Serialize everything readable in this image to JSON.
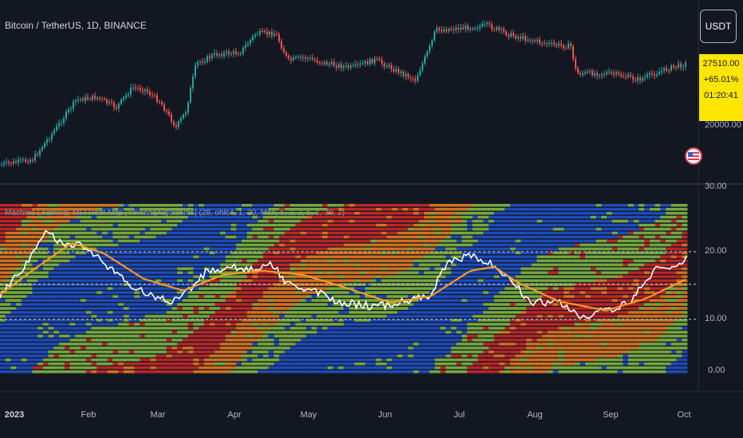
{
  "symbol": {
    "title": "Bitcoin / TetherUS, 1D, BINANCE",
    "currency": "USDT"
  },
  "price_badge": {
    "price": "27510.00",
    "change": "+65.01%",
    "countdown": "01:20:41"
  },
  "price_axis": {
    "labels": [
      "20000.00",
      "30.00"
    ]
  },
  "indicator": {
    "title": "Machine Learning: MFI Heat Map [YinYangAlgorithms] (28, ohlc4, 1, 20, Max, 5, 2, 2, 5, 1, 30, 2)",
    "axis_labels": [
      "20.00",
      "10.00",
      "0.00"
    ]
  },
  "time_axis": {
    "labels": [
      "2023",
      "Feb",
      "Mar",
      "Apr",
      "May",
      "Jun",
      "Jul",
      "Aug",
      "Sep",
      "Oct"
    ]
  },
  "icons": {
    "flag": "us-flag-icon"
  },
  "colors": {
    "background": "#131722",
    "up_candle": "#26a69a",
    "down_candle": "#ef5350",
    "mfi_line": "#ffffff",
    "mfi_ma_line": "#f59a23",
    "heat_red": "#c62828",
    "heat_orange": "#e0781f",
    "heat_green": "#7cb342",
    "heat_blue": "#1e4fc4",
    "badge": "#ffe600"
  }
}
